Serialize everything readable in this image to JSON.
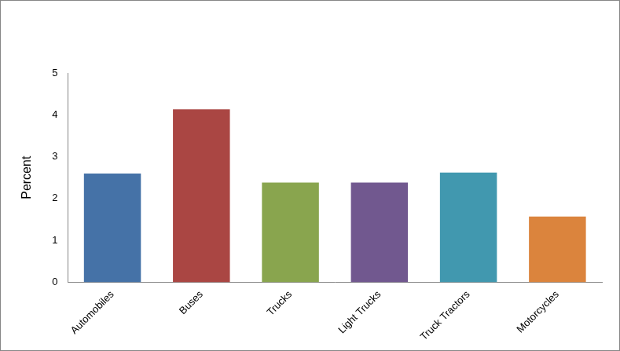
{
  "chart_data": {
    "type": "bar",
    "y_label": "Percent",
    "categories": [
      "Automobiles",
      "Buses",
      "Trucks",
      "Light Trucks",
      "Truck Tractors",
      "Motorcycles"
    ],
    "values": [
      2.6,
      4.13,
      2.38,
      2.38,
      2.62,
      1.57
    ],
    "colors": [
      "#4572a7",
      "#aa4643",
      "#89a54e",
      "#71588f",
      "#4198af",
      "#db843d"
    ],
    "ylim": [
      0,
      5
    ],
    "yticks": [
      0,
      1,
      2,
      3,
      4,
      5
    ],
    "grid": false
  }
}
